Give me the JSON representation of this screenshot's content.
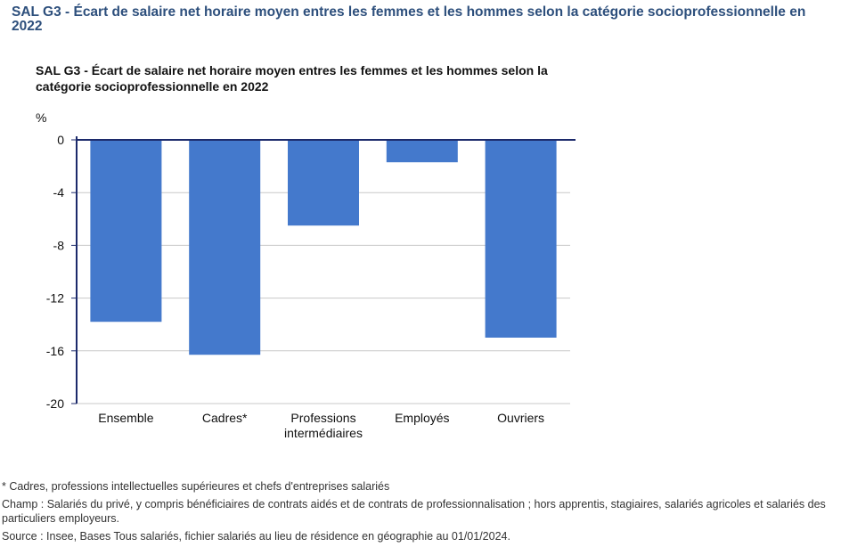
{
  "page": {
    "title": "SAL G3 - Écart de salaire net horaire moyen entres les femmes et les hommes selon la catégorie socioprofessionnelle en 2022"
  },
  "chart_data": {
    "type": "bar",
    "title": "SAL G3 - Écart de salaire net horaire moyen entres les femmes et les hommes selon la catégorie socioprofessionnelle en 2022",
    "ylabel": "%",
    "xlabel": "",
    "categories": [
      "Ensemble",
      "Cadres*",
      "Professions intermédiaires",
      "Employés",
      "Ouvriers"
    ],
    "category_lines": [
      [
        "Ensemble"
      ],
      [
        "Cadres*"
      ],
      [
        "Professions",
        "intermédiaires"
      ],
      [
        "Employés"
      ],
      [
        "Ouvriers"
      ]
    ],
    "values": [
      -13.8,
      -16.3,
      -6.5,
      -1.7,
      -15.0
    ],
    "ylim": [
      -20,
      0
    ],
    "yticks": [
      0,
      -4,
      -8,
      -12,
      -16,
      -20
    ],
    "grid": true,
    "legend": "none",
    "bar_color": "#4479cc",
    "axis_color": "#1c2a6b",
    "grid_color": "#c8c8c8"
  },
  "notes": {
    "footnote": "* Cadres, professions intellectuelles supérieures et chefs d'entreprises salariés",
    "champ": "Champ : Salariés du privé, y compris bénéficiaires de contrats aidés et de contrats de professionnalisation ; hors apprentis, stagiaires, salariés agricoles et salariés des particuliers employeurs.",
    "source": "Source : Insee, Bases Tous salariés, fichier salariés au lieu de résidence en géographie au 01/01/2024."
  }
}
